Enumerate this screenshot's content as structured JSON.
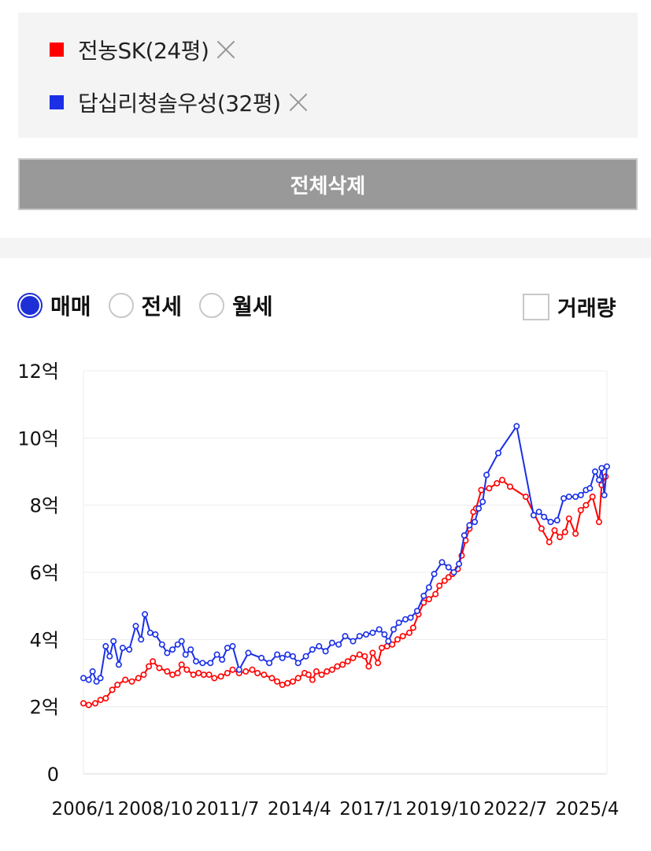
{
  "legend": {
    "items": [
      {
        "name": "전농SK(24평)",
        "color": "#ff0000"
      },
      {
        "name": "답십리청솔우성(32평)",
        "color": "#1a2fe6"
      }
    ]
  },
  "delete_all_label": "전체삭제",
  "radios": [
    {
      "label": "매매",
      "selected": true
    },
    {
      "label": "전세",
      "selected": false
    },
    {
      "label": "월세",
      "selected": false
    }
  ],
  "volume_label": "거래량",
  "chart_data": {
    "type": "line",
    "title": "",
    "xlabel": "",
    "ylabel": "",
    "ylim": [
      0,
      12
    ],
    "xlim": [
      2006.0,
      2026.0
    ],
    "yticks": [
      {
        "value": 0,
        "label": "0"
      },
      {
        "value": 2,
        "label": "2억"
      },
      {
        "value": 4,
        "label": "4억"
      },
      {
        "value": 6,
        "label": "6억"
      },
      {
        "value": 8,
        "label": "8억"
      },
      {
        "value": 10,
        "label": "10억"
      },
      {
        "value": 12,
        "label": "12억"
      }
    ],
    "xticks": [
      {
        "value": 2006.0,
        "label": "2006/1"
      },
      {
        "value": 2008.75,
        "label": "2008/10"
      },
      {
        "value": 2011.5,
        "label": "2011/7"
      },
      {
        "value": 2014.25,
        "label": "2014/4"
      },
      {
        "value": 2017.0,
        "label": "2017/1"
      },
      {
        "value": 2019.75,
        "label": "2019/10"
      },
      {
        "value": 2022.5,
        "label": "2022/7"
      },
      {
        "value": 2025.25,
        "label": "2025/4"
      }
    ],
    "grid": true,
    "series": [
      {
        "name": "전농SK(24평)",
        "color": "#ff0000",
        "points": [
          [
            2006.0,
            2.1
          ],
          [
            2006.2,
            2.05
          ],
          [
            2006.45,
            2.1
          ],
          [
            2006.65,
            2.2
          ],
          [
            2006.85,
            2.25
          ],
          [
            2007.1,
            2.5
          ],
          [
            2007.3,
            2.65
          ],
          [
            2007.6,
            2.8
          ],
          [
            2007.85,
            2.75
          ],
          [
            2008.1,
            2.85
          ],
          [
            2008.3,
            2.95
          ],
          [
            2008.5,
            3.2
          ],
          [
            2008.65,
            3.35
          ],
          [
            2008.9,
            3.15
          ],
          [
            2009.2,
            3.05
          ],
          [
            2009.4,
            2.95
          ],
          [
            2009.6,
            3.0
          ],
          [
            2009.75,
            3.25
          ],
          [
            2009.95,
            3.1
          ],
          [
            2010.2,
            2.95
          ],
          [
            2010.4,
            3.0
          ],
          [
            2010.6,
            2.95
          ],
          [
            2010.8,
            2.95
          ],
          [
            2011.0,
            2.85
          ],
          [
            2011.25,
            2.9
          ],
          [
            2011.5,
            3.0
          ],
          [
            2011.7,
            3.1
          ],
          [
            2011.95,
            3.0
          ],
          [
            2012.2,
            3.05
          ],
          [
            2012.45,
            3.1
          ],
          [
            2012.65,
            3.0
          ],
          [
            2012.9,
            2.95
          ],
          [
            2013.2,
            2.85
          ],
          [
            2013.4,
            2.75
          ],
          [
            2013.6,
            2.65
          ],
          [
            2013.8,
            2.7
          ],
          [
            2014.0,
            2.75
          ],
          [
            2014.2,
            2.85
          ],
          [
            2014.45,
            3.0
          ],
          [
            2014.6,
            2.95
          ],
          [
            2014.75,
            2.8
          ],
          [
            2014.9,
            3.05
          ],
          [
            2015.1,
            2.95
          ],
          [
            2015.3,
            3.05
          ],
          [
            2015.5,
            3.1
          ],
          [
            2015.7,
            3.2
          ],
          [
            2015.9,
            3.25
          ],
          [
            2016.1,
            3.35
          ],
          [
            2016.3,
            3.45
          ],
          [
            2016.55,
            3.55
          ],
          [
            2016.75,
            3.5
          ],
          [
            2016.9,
            3.2
          ],
          [
            2017.05,
            3.6
          ],
          [
            2017.25,
            3.3
          ],
          [
            2017.4,
            3.75
          ],
          [
            2017.6,
            3.8
          ],
          [
            2017.8,
            3.85
          ],
          [
            2018.0,
            4.0
          ],
          [
            2018.2,
            4.1
          ],
          [
            2018.45,
            4.2
          ],
          [
            2018.6,
            4.35
          ],
          [
            2018.8,
            4.75
          ],
          [
            2019.0,
            5.1
          ],
          [
            2019.2,
            5.2
          ],
          [
            2019.45,
            5.35
          ],
          [
            2019.6,
            5.6
          ],
          [
            2019.8,
            5.75
          ],
          [
            2019.95,
            5.85
          ],
          [
            2020.1,
            5.95
          ],
          [
            2020.3,
            6.1
          ],
          [
            2020.45,
            6.5
          ],
          [
            2020.6,
            6.95
          ],
          [
            2020.75,
            7.3
          ],
          [
            2020.9,
            7.8
          ],
          [
            2021.0,
            7.9
          ],
          [
            2021.2,
            8.45
          ],
          [
            2021.5,
            8.5
          ],
          [
            2021.8,
            8.65
          ],
          [
            2022.0,
            8.75
          ],
          [
            2022.3,
            8.55
          ],
          [
            2022.9,
            8.25
          ],
          [
            2023.5,
            7.3
          ],
          [
            2023.8,
            6.9
          ],
          [
            2024.0,
            7.25
          ],
          [
            2024.2,
            7.05
          ],
          [
            2024.4,
            7.2
          ],
          [
            2024.55,
            7.6
          ],
          [
            2024.8,
            7.15
          ],
          [
            2025.0,
            7.85
          ],
          [
            2025.2,
            8.0
          ],
          [
            2025.45,
            8.25
          ],
          [
            2025.7,
            7.5
          ],
          [
            2025.8,
            8.6
          ],
          [
            2025.95,
            8.85
          ]
        ]
      },
      {
        "name": "답십리청솔우성(32평)",
        "color": "#1a2fe6",
        "points": [
          [
            2006.0,
            2.85
          ],
          [
            2006.2,
            2.8
          ],
          [
            2006.35,
            3.05
          ],
          [
            2006.5,
            2.75
          ],
          [
            2006.65,
            2.85
          ],
          [
            2006.85,
            3.8
          ],
          [
            2007.0,
            3.5
          ],
          [
            2007.15,
            3.95
          ],
          [
            2007.35,
            3.25
          ],
          [
            2007.5,
            3.75
          ],
          [
            2007.75,
            3.7
          ],
          [
            2008.0,
            4.4
          ],
          [
            2008.2,
            4.0
          ],
          [
            2008.35,
            4.75
          ],
          [
            2008.55,
            4.2
          ],
          [
            2008.75,
            4.15
          ],
          [
            2009.0,
            3.85
          ],
          [
            2009.2,
            3.6
          ],
          [
            2009.4,
            3.7
          ],
          [
            2009.6,
            3.85
          ],
          [
            2009.75,
            3.95
          ],
          [
            2009.9,
            3.55
          ],
          [
            2010.1,
            3.7
          ],
          [
            2010.3,
            3.35
          ],
          [
            2010.55,
            3.3
          ],
          [
            2010.85,
            3.3
          ],
          [
            2011.1,
            3.55
          ],
          [
            2011.3,
            3.4
          ],
          [
            2011.5,
            3.75
          ],
          [
            2011.7,
            3.8
          ],
          [
            2011.95,
            3.1
          ],
          [
            2012.3,
            3.6
          ],
          [
            2012.8,
            3.45
          ],
          [
            2013.1,
            3.3
          ],
          [
            2013.4,
            3.55
          ],
          [
            2013.6,
            3.45
          ],
          [
            2013.8,
            3.55
          ],
          [
            2014.0,
            3.5
          ],
          [
            2014.2,
            3.3
          ],
          [
            2014.5,
            3.5
          ],
          [
            2014.75,
            3.7
          ],
          [
            2015.0,
            3.8
          ],
          [
            2015.25,
            3.65
          ],
          [
            2015.5,
            3.9
          ],
          [
            2015.75,
            3.85
          ],
          [
            2016.0,
            4.1
          ],
          [
            2016.3,
            3.95
          ],
          [
            2016.55,
            4.1
          ],
          [
            2016.8,
            4.15
          ],
          [
            2017.05,
            4.2
          ],
          [
            2017.3,
            4.3
          ],
          [
            2017.5,
            4.15
          ],
          [
            2017.65,
            3.95
          ],
          [
            2017.85,
            4.3
          ],
          [
            2018.05,
            4.5
          ],
          [
            2018.3,
            4.6
          ],
          [
            2018.5,
            4.65
          ],
          [
            2018.75,
            4.85
          ],
          [
            2019.0,
            5.3
          ],
          [
            2019.2,
            5.55
          ],
          [
            2019.4,
            5.95
          ],
          [
            2019.7,
            6.3
          ],
          [
            2019.95,
            6.15
          ],
          [
            2020.15,
            6.0
          ],
          [
            2020.35,
            6.25
          ],
          [
            2020.55,
            7.1
          ],
          [
            2020.75,
            7.4
          ],
          [
            2020.95,
            7.5
          ],
          [
            2021.1,
            7.9
          ],
          [
            2021.25,
            8.1
          ],
          [
            2021.4,
            8.9
          ],
          [
            2021.85,
            9.55
          ],
          [
            2022.55,
            10.35
          ],
          [
            2023.2,
            7.7
          ],
          [
            2023.4,
            7.8
          ],
          [
            2023.6,
            7.65
          ],
          [
            2023.85,
            7.5
          ],
          [
            2024.1,
            7.55
          ],
          [
            2024.35,
            8.2
          ],
          [
            2024.55,
            8.25
          ],
          [
            2024.8,
            8.25
          ],
          [
            2025.0,
            8.3
          ],
          [
            2025.2,
            8.45
          ],
          [
            2025.35,
            8.5
          ],
          [
            2025.55,
            9.0
          ],
          [
            2025.7,
            8.75
          ],
          [
            2025.8,
            9.1
          ],
          [
            2025.9,
            8.3
          ],
          [
            2026.0,
            9.15
          ]
        ]
      }
    ]
  }
}
